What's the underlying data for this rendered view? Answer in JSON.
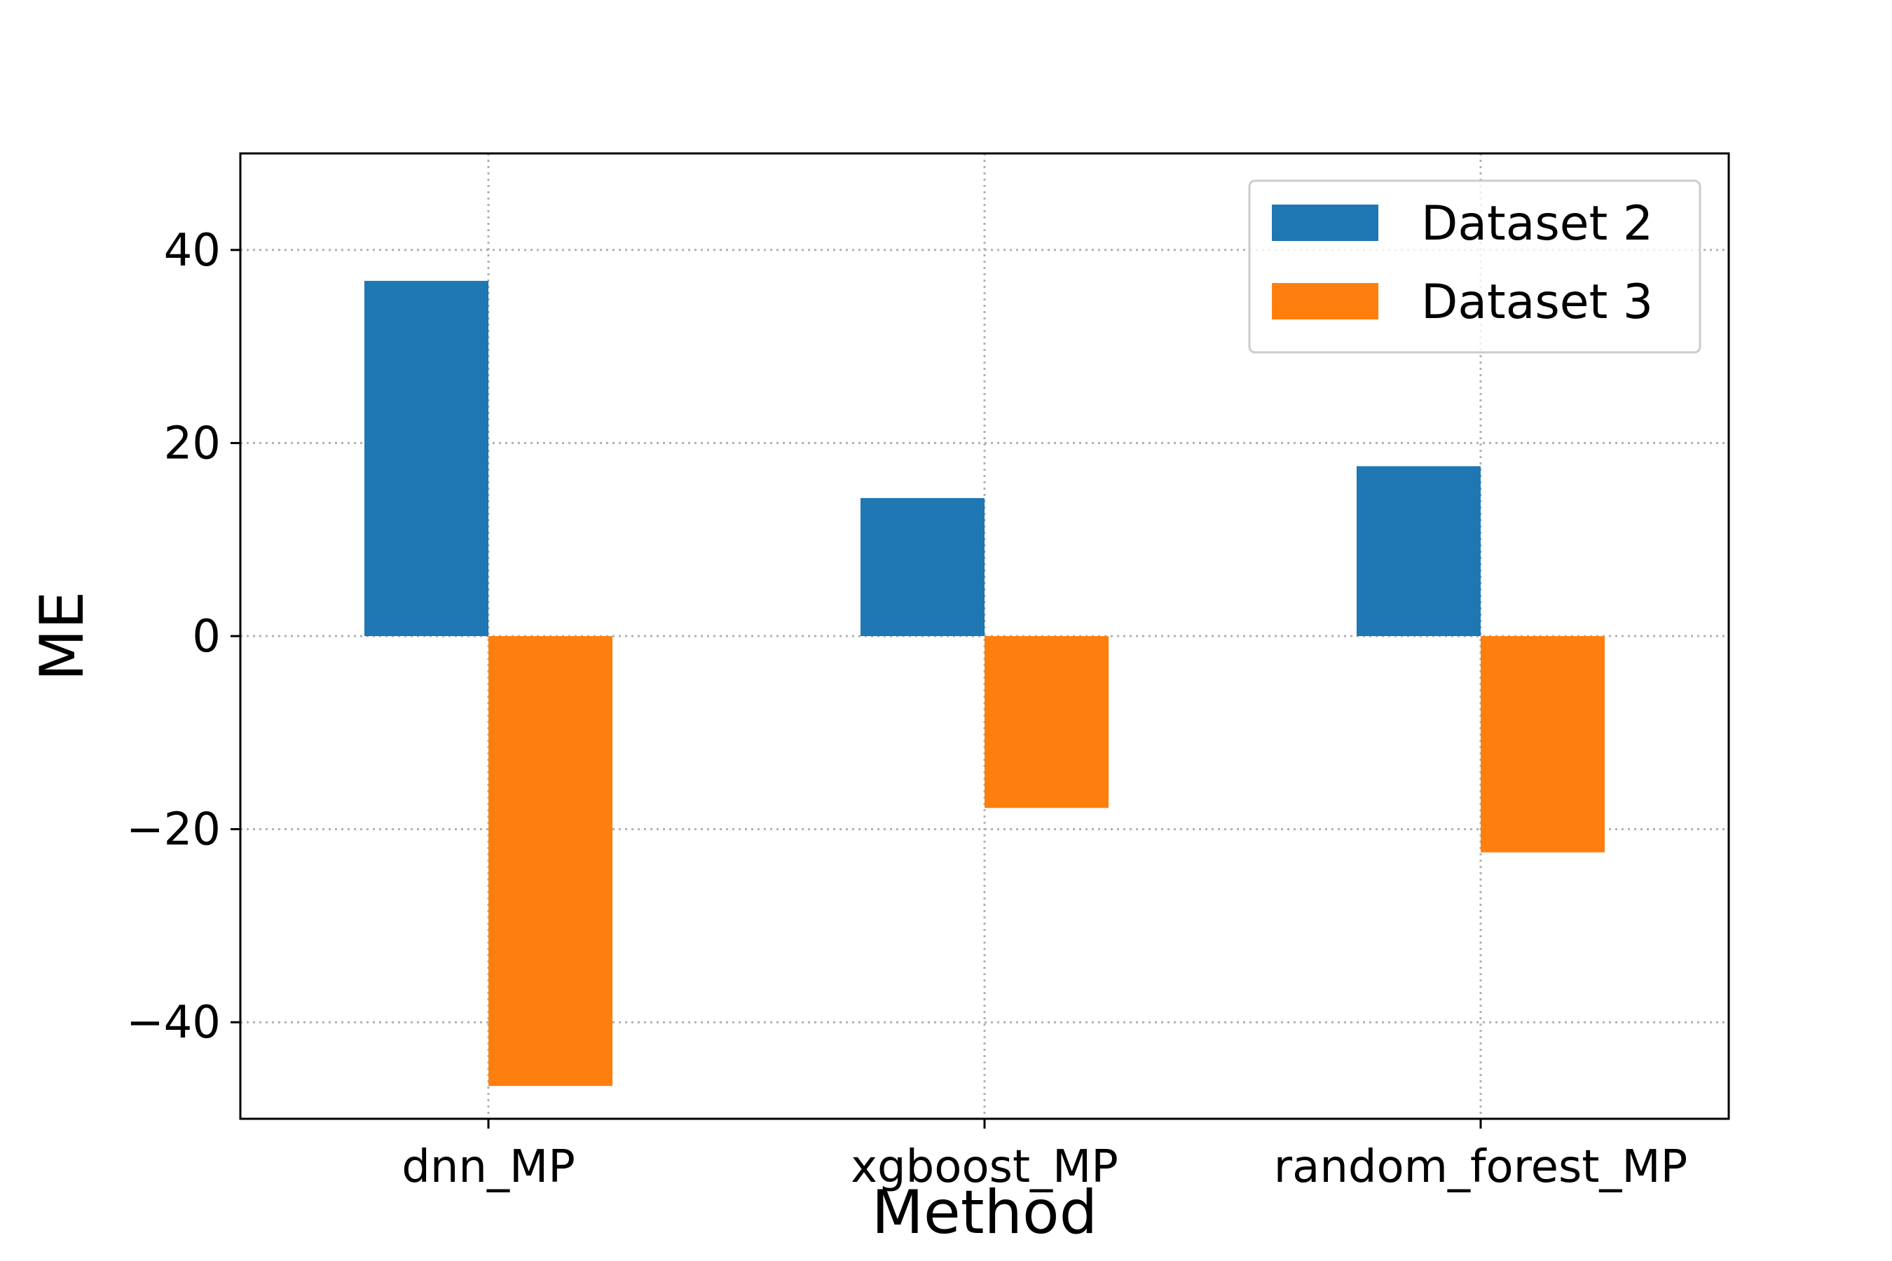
{
  "chart_data": {
    "type": "bar",
    "categories": [
      "dnn_MP",
      "xgboost_MP",
      "random_forest_MP"
    ],
    "series": [
      {
        "name": "Dataset 2",
        "color": "#1f77b4",
        "values": [
          36.8,
          14.3,
          17.6
        ]
      },
      {
        "name": "Dataset 3",
        "color": "#ff7f0e",
        "values": [
          -46.6,
          -17.8,
          -22.4
        ]
      }
    ],
    "title": "",
    "xlabel": "Method",
    "ylabel": "ME",
    "ylim": [
      -50,
      50
    ],
    "yticks": [
      40,
      20,
      0,
      -20,
      -40
    ],
    "ytick_labels": [
      "40",
      "20",
      "0",
      "−20",
      "−40"
    ],
    "grid": true,
    "grid_style": "dotted",
    "legend_position": "top-right"
  }
}
